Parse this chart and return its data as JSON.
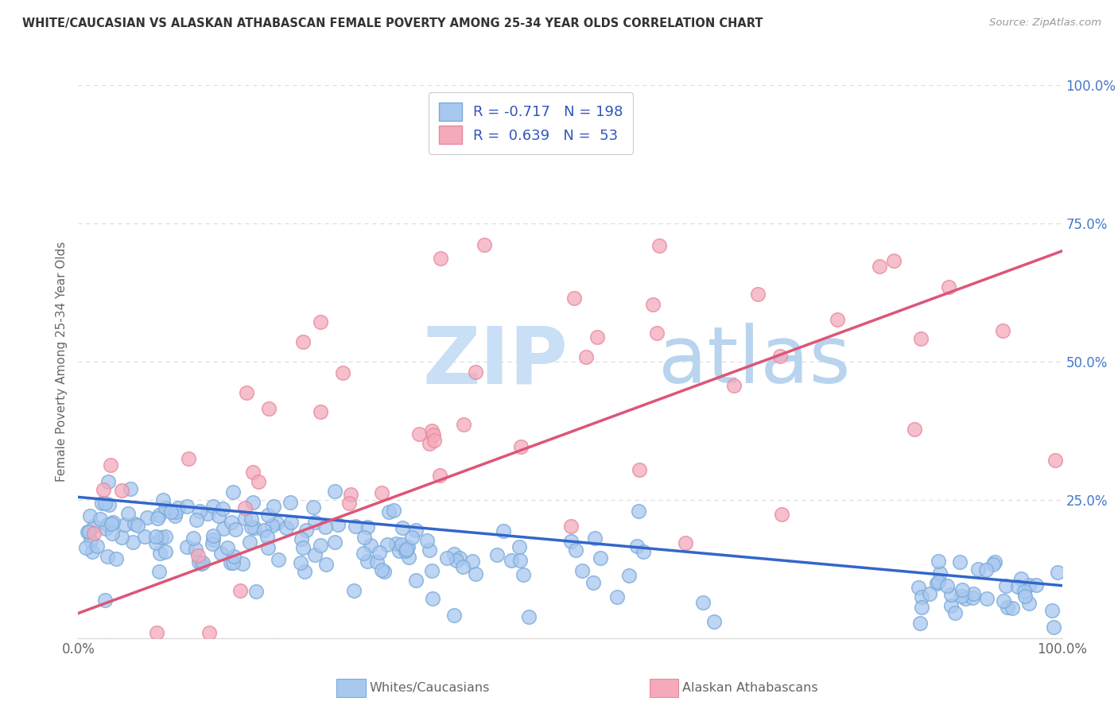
{
  "title": "WHITE/CAUCASIAN VS ALASKAN ATHABASCAN FEMALE POVERTY AMONG 25-34 YEAR OLDS CORRELATION CHART",
  "source": "Source: ZipAtlas.com",
  "ylabel": "Female Poverty Among 25-34 Year Olds",
  "blue_R": -0.717,
  "blue_N": 198,
  "pink_R": 0.639,
  "pink_N": 53,
  "legend_label_blue": "Whites/Caucasians",
  "legend_label_pink": "Alaskan Athabascans",
  "blue_color": "#A8C8F0",
  "pink_color": "#F4AABB",
  "blue_edge_color": "#7AAAD8",
  "pink_edge_color": "#E888A0",
  "blue_line_color": "#3366CC",
  "pink_line_color": "#DD5577",
  "tick_color": "#4477CC",
  "watermark_color": "#C8DFF5",
  "background_color": "#FFFFFF",
  "grid_color": "#DDDDDD",
  "title_color": "#333333",
  "source_color": "#999999",
  "label_color": "#666666",
  "legend_text_color": "#333333",
  "legend_value_color": "#3355BB"
}
